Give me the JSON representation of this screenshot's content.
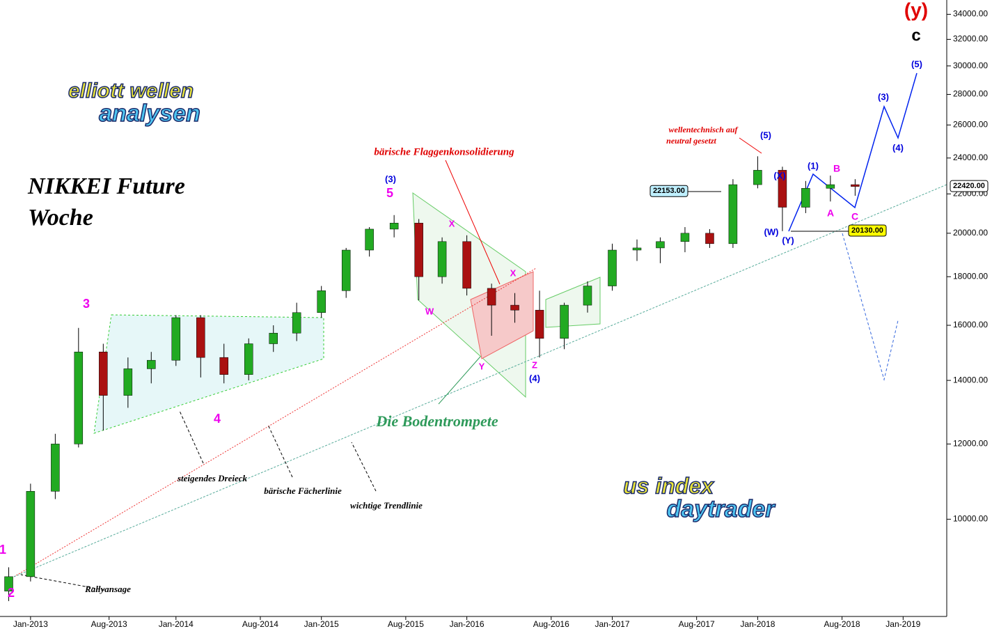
{
  "chart_data": {
    "type": "candlestick",
    "title": "NIKKEI Future",
    "subtitle": "Woche",
    "logos": [
      "elliott wellen",
      "analysen",
      "us index",
      "daytrader"
    ],
    "x": [
      2012.85,
      2013.0,
      2013.17,
      2013.33,
      2013.5,
      2013.67,
      2013.83,
      2014.0,
      2014.17,
      2014.33,
      2014.5,
      2014.67,
      2014.83,
      2015.0,
      2015.17,
      2015.33,
      2015.5,
      2015.67,
      2015.83,
      2016.0,
      2016.17,
      2016.33,
      2016.5,
      2016.67,
      2016.83,
      2017.0,
      2017.17,
      2017.33,
      2017.5,
      2017.67,
      2017.83,
      2018.0,
      2018.17,
      2018.33,
      2018.5,
      2018.67
    ],
    "open": [
      8400,
      8700,
      10700,
      12000,
      15000,
      13500,
      14400,
      14700,
      16300,
      14800,
      14200,
      15300,
      15700,
      16500,
      17400,
      19200,
      20200,
      20500,
      18000,
      19600,
      17500,
      16800,
      16600,
      15500,
      16800,
      17600,
      19200,
      19300,
      19600,
      20000,
      19500,
      22500,
      23300,
      21300,
      22300,
      22500
    ],
    "high": [
      8900,
      10900,
      12300,
      15900,
      15300,
      14800,
      15000,
      16400,
      16400,
      15300,
      15500,
      16000,
      16900,
      17600,
      19300,
      20300,
      20900,
      20700,
      19800,
      19900,
      17700,
      17300,
      17400,
      16900,
      17800,
      19500,
      19700,
      19800,
      20300,
      20200,
      22800,
      24100,
      23500,
      22700,
      23000,
      22800
    ],
    "low": [
      8200,
      8600,
      10500,
      11900,
      12400,
      13100,
      13900,
      14500,
      14100,
      13900,
      14000,
      15000,
      15400,
      16300,
      17100,
      18900,
      19800,
      17000,
      17700,
      17200,
      15600,
      16100,
      14800,
      15100,
      16500,
      17400,
      18700,
      18600,
      19100,
      19300,
      19300,
      22300,
      20100,
      21000,
      21600,
      21900
    ],
    "close": [
      8700,
      10700,
      12000,
      15000,
      13500,
      14400,
      14700,
      16300,
      14800,
      14200,
      15300,
      15700,
      16500,
      17400,
      19200,
      20200,
      20500,
      18000,
      19600,
      17500,
      16800,
      16600,
      15500,
      16800,
      17600,
      19200,
      19300,
      19600,
      20000,
      19500,
      22500,
      23300,
      21300,
      22300,
      22500,
      22400
    ],
    "log_scale": true,
    "xlim": [
      2012.79,
      2019.3
    ],
    "xticks": [
      {
        "value": 2013.0,
        "label": "Jan-2013"
      },
      {
        "value": 2013.54,
        "label": "Aug-2013"
      },
      {
        "value": 2014.0,
        "label": "Jan-2014"
      },
      {
        "value": 2014.58,
        "label": "Aug-2014"
      },
      {
        "value": 2015.0,
        "label": "Jan-2015"
      },
      {
        "value": 2015.58,
        "label": "Aug-2015"
      },
      {
        "value": 2016.0,
        "label": "Jan-2016"
      },
      {
        "value": 2016.58,
        "label": "Aug-2016"
      },
      {
        "value": 2017.0,
        "label": "Jan-2017"
      },
      {
        "value": 2017.58,
        "label": "Aug-2017"
      },
      {
        "value": 2018.0,
        "label": "Jan-2018"
      },
      {
        "value": 2018.58,
        "label": "Aug-2018"
      },
      {
        "value": 2019.0,
        "label": "Jan-2019"
      }
    ],
    "ylim": [
      7900,
      35200
    ],
    "yticks": [
      {
        "value": 10000,
        "label": "10000.00"
      },
      {
        "value": 12000,
        "label": "12000.00"
      },
      {
        "value": 14000,
        "label": "14000.00"
      },
      {
        "value": 16000,
        "label": "16000.00"
      },
      {
        "value": 18000,
        "label": "18000.00"
      },
      {
        "value": 20000,
        "label": "20000.00"
      },
      {
        "value": 22000,
        "label": "22000.00"
      },
      {
        "value": 24000,
        "label": "24000.00"
      },
      {
        "value": 26000,
        "label": "26000.00"
      },
      {
        "value": 28000,
        "label": "28000.00"
      },
      {
        "value": 30000,
        "label": "30000.00"
      },
      {
        "value": 32000,
        "label": "32000.00"
      },
      {
        "value": 34000,
        "label": "34000.00"
      }
    ],
    "up_color": "#22aa22",
    "down_color": "#aa1111",
    "price_boxes": [
      {
        "value": 22153,
        "label": "22153.00",
        "color": "#bff0ff"
      },
      {
        "value": 20130,
        "label": "20130.00",
        "color": "#ffff00"
      },
      {
        "value": 22420,
        "label": "22420.00",
        "color": "#ffffff"
      }
    ],
    "annotations": [
      {
        "text": "NIKKEI Future",
        "color": "#000000"
      },
      {
        "text": "Woche",
        "color": "#000000"
      },
      {
        "text": "bärische Flaggenkonsolidierung",
        "color": "#e00000"
      },
      {
        "text": "Die Bodentrompete",
        "color": "#2e9a5a"
      },
      {
        "text": "steigendes Dreieck",
        "color": "#000000"
      },
      {
        "text": "bärische Fächerlinie",
        "color": "#000000"
      },
      {
        "text": "wichtige Trendlinie",
        "color": "#000000"
      },
      {
        "text": "Rallyansage",
        "color": "#000000"
      },
      {
        "text": "wellentechnisch auf",
        "color": "#e00000"
      },
      {
        "text": "neutral gesetzt",
        "color": "#e00000"
      },
      {
        "text": "(y)",
        "color": "#e00000"
      },
      {
        "text": "c",
        "color": "#000000"
      },
      {
        "text": "1",
        "color": "#ee00ee"
      },
      {
        "text": "2",
        "color": "#ee00ee"
      },
      {
        "text": "3",
        "color": "#ee00ee"
      },
      {
        "text": "4",
        "color": "#ee00ee"
      },
      {
        "text": "5",
        "color": "#ee00ee"
      },
      {
        "text": "(3)",
        "color": "#0000dd"
      },
      {
        "text": "(4)",
        "color": "#0000dd"
      },
      {
        "text": "(5)",
        "color": "#0000dd"
      },
      {
        "text": "(W)",
        "color": "#0000dd"
      },
      {
        "text": "(X)",
        "color": "#0000dd"
      },
      {
        "text": "(Y)",
        "color": "#0000dd"
      },
      {
        "text": "(1)",
        "color": "#0000dd"
      },
      {
        "text": "(3)",
        "color": "#0000dd"
      },
      {
        "text": "(4)",
        "color": "#0000dd"
      },
      {
        "text": "(5)",
        "color": "#0000dd"
      },
      {
        "text": "A",
        "color": "#ee00ee"
      },
      {
        "text": "B",
        "color": "#ee00ee"
      },
      {
        "text": "C",
        "color": "#ee00ee"
      },
      {
        "text": "X",
        "color": "#ee00ee"
      },
      {
        "text": "W",
        "color": "#ee00ee"
      },
      {
        "text": "Y",
        "color": "#ee00ee"
      },
      {
        "text": "X",
        "color": "#ee00ee"
      },
      {
        "text": "Z",
        "color": "#ee00ee"
      }
    ]
  }
}
